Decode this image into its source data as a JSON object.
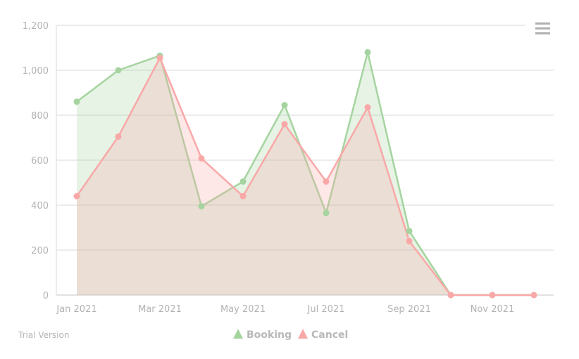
{
  "chart_data": {
    "type": "area",
    "x": [
      "2021-01",
      "2021-02",
      "2021-03",
      "2021-04",
      "2021-05",
      "2021-06",
      "2021-07",
      "2021-08",
      "2021-09",
      "2021-10",
      "2021-11",
      "2021-12"
    ],
    "x_tick_labels": [
      "Jan 2021",
      "Mar 2021",
      "May 2021",
      "Jul 2021",
      "Sep 2021",
      "Nov 2021"
    ],
    "y_tick_labels": [
      "0",
      "200",
      "400",
      "600",
      "800",
      "1,000",
      "1,200"
    ],
    "ylim": [
      0,
      1200
    ],
    "grid": true,
    "legend_position": "bottom-center",
    "series": [
      {
        "name": "Booking",
        "color": "#a6d4a0",
        "fill": "#e3f1e0",
        "values": [
          860,
          1000,
          1065,
          395,
          505,
          845,
          365,
          1080,
          285,
          0,
          0,
          0
        ]
      },
      {
        "name": "Cancel",
        "color": "#f9a8a8",
        "fill": "#fde3e3",
        "values": [
          440,
          705,
          1055,
          608,
          440,
          760,
          505,
          835,
          240,
          0,
          0,
          0
        ]
      }
    ]
  },
  "watermark": "Trial Version",
  "menu_icon": "hamburger-menu-icon"
}
